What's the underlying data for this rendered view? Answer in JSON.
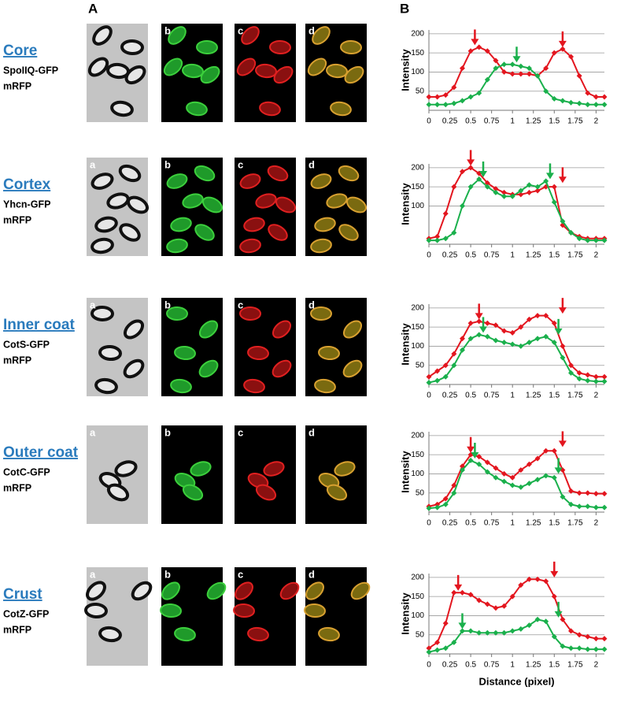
{
  "figure": {
    "panel_a": "A",
    "panel_b": "B",
    "rows": [
      {
        "name": "Core",
        "protein": "SpoIIQ-GFP",
        "fp": "mRFP",
        "labels": [
          "b",
          "c",
          "d"
        ]
      },
      {
        "name": "Cortex",
        "protein": "Yhcn-GFP",
        "fp": "mRFP",
        "labels": [
          "a",
          "b",
          "c",
          "d"
        ]
      },
      {
        "name": "Inner coat",
        "protein": "CotS-GFP",
        "fp": "mRFP",
        "labels": [
          "a",
          "b",
          "c",
          "d"
        ]
      },
      {
        "name": "Outer coat",
        "protein": "CotC-GFP",
        "fp": "mRFP",
        "labels": [
          "a",
          "b",
          "c",
          "d"
        ]
      },
      {
        "name": "Crust",
        "protein": "CotZ-GFP",
        "fp": "mRFP",
        "labels": [
          "a",
          "b",
          "c",
          "d"
        ]
      }
    ]
  },
  "chart_data": [
    {
      "type": "line",
      "y_label": "Intensity",
      "xlim": [
        0,
        2.1
      ],
      "ylim": [
        0,
        210
      ],
      "xticks": [
        0,
        0.25,
        0.5,
        0.75,
        1,
        1.25,
        1.5,
        1.75,
        2
      ],
      "yticks": [
        50,
        100,
        150,
        200
      ],
      "grid": true,
      "x": [
        0,
        0.1,
        0.2,
        0.3,
        0.4,
        0.5,
        0.6,
        0.7,
        0.8,
        0.9,
        1,
        1.1,
        1.2,
        1.3,
        1.4,
        1.5,
        1.6,
        1.7,
        1.8,
        1.9,
        2,
        2.1
      ],
      "series": [
        {
          "color": "#e3161f",
          "values": [
            35,
            35,
            40,
            60,
            110,
            155,
            165,
            155,
            130,
            100,
            95,
            95,
            95,
            90,
            110,
            150,
            160,
            140,
            90,
            45,
            35,
            35
          ]
        },
        {
          "color": "#1ab04c",
          "values": [
            15,
            15,
            15,
            18,
            25,
            35,
            45,
            80,
            110,
            120,
            120,
            115,
            110,
            90,
            50,
            30,
            25,
            20,
            18,
            15,
            15,
            15
          ]
        }
      ],
      "arrows": [
        {
          "x": 0.55,
          "y": 170,
          "color": "#e3161f"
        },
        {
          "x": 1.6,
          "y": 165,
          "color": "#e3161f"
        },
        {
          "x": 1.05,
          "y": 125,
          "color": "#1ab04c"
        }
      ]
    },
    {
      "type": "line",
      "y_label": "Intensity",
      "xlim": [
        0,
        2.1
      ],
      "ylim": [
        0,
        210
      ],
      "xticks": [
        0,
        0.25,
        0.5,
        0.75,
        1,
        1.25,
        1.5,
        1.75,
        2
      ],
      "yticks": [
        100,
        150,
        200
      ],
      "grid": true,
      "x": [
        0,
        0.1,
        0.2,
        0.3,
        0.4,
        0.5,
        0.6,
        0.7,
        0.8,
        0.9,
        1,
        1.1,
        1.2,
        1.3,
        1.4,
        1.5,
        1.6,
        1.7,
        1.8,
        1.9,
        2,
        2.1
      ],
      "series": [
        {
          "color": "#e3161f",
          "values": [
            15,
            20,
            80,
            150,
            190,
            200,
            185,
            160,
            145,
            135,
            130,
            130,
            135,
            140,
            150,
            150,
            50,
            30,
            20,
            15,
            15,
            15
          ]
        },
        {
          "color": "#1ab04c",
          "values": [
            10,
            10,
            15,
            30,
            100,
            150,
            170,
            150,
            135,
            125,
            125,
            140,
            155,
            150,
            165,
            110,
            60,
            30,
            15,
            10,
            10,
            10
          ]
        }
      ],
      "arrows": [
        {
          "x": 0.5,
          "y": 205,
          "color": "#e3161f"
        },
        {
          "x": 1.6,
          "y": 160,
          "color": "#e3161f"
        },
        {
          "x": 0.65,
          "y": 175,
          "color": "#1ab04c"
        },
        {
          "x": 1.45,
          "y": 170,
          "color": "#1ab04c"
        }
      ]
    },
    {
      "type": "line",
      "y_label": "Intensity",
      "xlim": [
        0,
        2.1
      ],
      "ylim": [
        0,
        210
      ],
      "xticks": [
        0,
        0.25,
        0.5,
        0.75,
        1,
        1.25,
        1.5,
        1.75,
        2
      ],
      "yticks": [
        50,
        100,
        150,
        200
      ],
      "grid": true,
      "x": [
        0,
        0.1,
        0.2,
        0.3,
        0.4,
        0.5,
        0.6,
        0.7,
        0.8,
        0.9,
        1,
        1.1,
        1.2,
        1.3,
        1.4,
        1.5,
        1.6,
        1.7,
        1.8,
        1.9,
        2,
        2.1
      ],
      "series": [
        {
          "color": "#e3161f",
          "values": [
            20,
            35,
            50,
            80,
            120,
            160,
            165,
            160,
            155,
            140,
            135,
            150,
            170,
            180,
            180,
            160,
            100,
            50,
            30,
            25,
            20,
            20
          ]
        },
        {
          "color": "#1ab04c",
          "values": [
            5,
            10,
            20,
            50,
            90,
            120,
            130,
            125,
            115,
            110,
            105,
            100,
            110,
            120,
            125,
            110,
            70,
            30,
            15,
            10,
            8,
            8
          ]
        }
      ],
      "arrows": [
        {
          "x": 0.6,
          "y": 170,
          "color": "#e3161f"
        },
        {
          "x": 1.6,
          "y": 185,
          "color": "#e3161f"
        },
        {
          "x": 0.65,
          "y": 135,
          "color": "#1ab04c"
        },
        {
          "x": 1.55,
          "y": 130,
          "color": "#1ab04c"
        }
      ]
    },
    {
      "type": "line",
      "y_label": "Intensity",
      "xlim": [
        0,
        2.1
      ],
      "ylim": [
        0,
        210
      ],
      "xticks": [
        0,
        0.25,
        0.5,
        0.75,
        1,
        1.25,
        1.5,
        1.75,
        2
      ],
      "yticks": [
        50,
        100,
        150,
        200
      ],
      "grid": true,
      "x": [
        0,
        0.1,
        0.2,
        0.3,
        0.4,
        0.5,
        0.6,
        0.7,
        0.8,
        0.9,
        1,
        1.1,
        1.2,
        1.3,
        1.4,
        1.5,
        1.6,
        1.7,
        1.8,
        1.9,
        2,
        2.1
      ],
      "series": [
        {
          "color": "#e3161f",
          "values": [
            15,
            20,
            35,
            70,
            120,
            150,
            145,
            130,
            115,
            100,
            90,
            110,
            125,
            140,
            160,
            160,
            110,
            55,
            50,
            50,
            48,
            48
          ]
        },
        {
          "color": "#1ab04c",
          "values": [
            10,
            12,
            20,
            50,
            110,
            135,
            125,
            105,
            90,
            80,
            70,
            65,
            75,
            85,
            95,
            90,
            40,
            20,
            15,
            15,
            12,
            12
          ]
        }
      ],
      "arrows": [
        {
          "x": 0.5,
          "y": 155,
          "color": "#e3161f"
        },
        {
          "x": 1.6,
          "y": 170,
          "color": "#e3161f"
        },
        {
          "x": 0.55,
          "y": 140,
          "color": "#1ab04c"
        },
        {
          "x": 1.55,
          "y": 100,
          "color": "#1ab04c"
        }
      ]
    },
    {
      "type": "line",
      "y_label": "Intensity",
      "x_label": "Distance (pixel)",
      "xlim": [
        0,
        2.1
      ],
      "ylim": [
        0,
        210
      ],
      "xticks": [
        0,
        0.25,
        0.5,
        0.75,
        1,
        1.25,
        1.5,
        1.75,
        2
      ],
      "yticks": [
        50,
        100,
        150,
        200
      ],
      "grid": true,
      "x": [
        0,
        0.1,
        0.2,
        0.3,
        0.4,
        0.5,
        0.6,
        0.7,
        0.8,
        0.9,
        1,
        1.1,
        1.2,
        1.3,
        1.4,
        1.5,
        1.6,
        1.7,
        1.8,
        1.9,
        2,
        2.1
      ],
      "series": [
        {
          "color": "#e3161f",
          "values": [
            15,
            30,
            80,
            160,
            160,
            155,
            140,
            130,
            120,
            125,
            150,
            180,
            195,
            195,
            190,
            150,
            90,
            60,
            50,
            45,
            40,
            40
          ]
        },
        {
          "color": "#1ab04c",
          "values": [
            5,
            10,
            15,
            30,
            60,
            60,
            55,
            55,
            55,
            55,
            60,
            65,
            75,
            90,
            85,
            45,
            20,
            15,
            15,
            12,
            12,
            12
          ]
        }
      ],
      "arrows": [
        {
          "x": 0.35,
          "y": 165,
          "color": "#e3161f"
        },
        {
          "x": 1.5,
          "y": 200,
          "color": "#e3161f"
        },
        {
          "x": 0.4,
          "y": 65,
          "color": "#1ab04c"
        },
        {
          "x": 1.55,
          "y": 95,
          "color": "#1ab04c"
        }
      ]
    }
  ]
}
